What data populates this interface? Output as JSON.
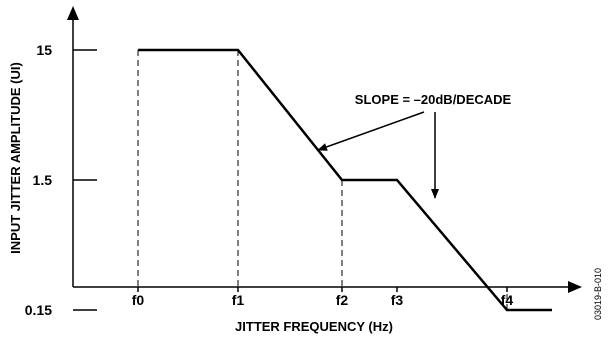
{
  "chart_data": {
    "type": "line",
    "xlabel": "JITTER FREQUENCY (Hz)",
    "ylabel": "INPUT JITTER AMPLITUDE (UI)",
    "x_scale": "log",
    "y_scale": "log",
    "x_ticks": [
      "f0",
      "f1",
      "f2",
      "f3",
      "f4"
    ],
    "y_ticks": [
      "15",
      "1.5",
      "0.15"
    ],
    "series": [
      {
        "points": [
          {
            "x": "f0",
            "y": 15
          },
          {
            "x": "f1",
            "y": 15
          },
          {
            "x": "f2",
            "y": 1.5
          },
          {
            "x": "f3",
            "y": 1.5
          },
          {
            "x": "f4",
            "y": 0.15
          }
        ]
      }
    ],
    "annotations": [
      {
        "text": "SLOPE = –20dB/DECADE",
        "points_to": [
          "f1-f2 segment",
          "f3-f4 segment"
        ]
      }
    ],
    "figure_code": "03019-B-010",
    "grid": false
  }
}
